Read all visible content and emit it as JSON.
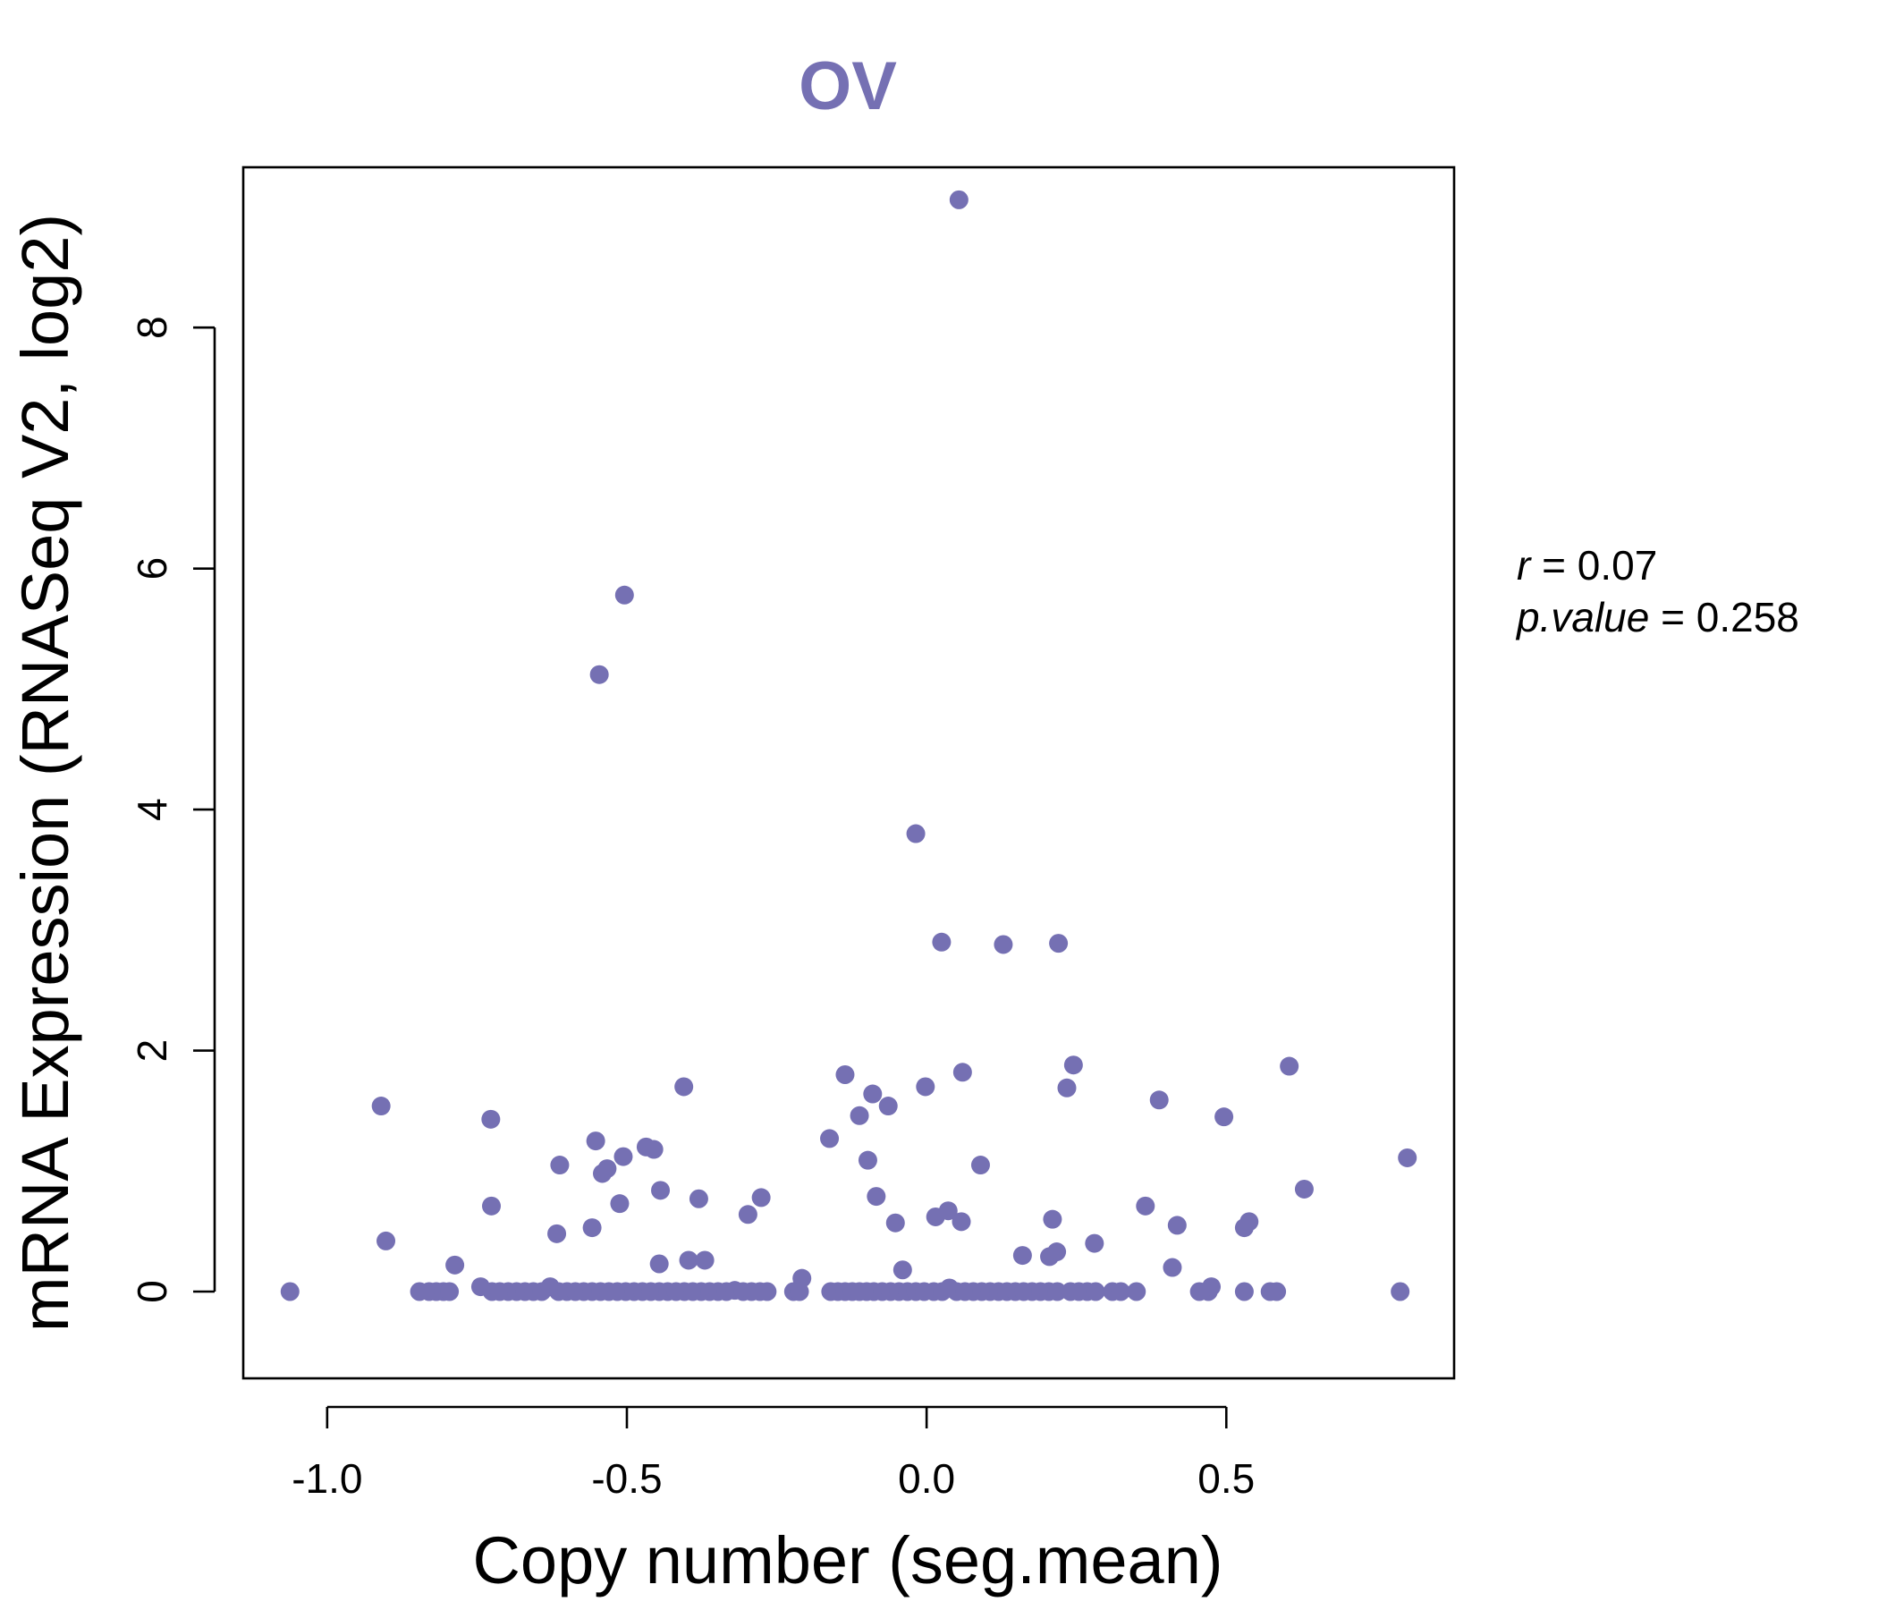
{
  "chart_data": {
    "type": "scatter",
    "title": "OV",
    "title_color": "#7570B3",
    "point_color": "#7570B3",
    "xlabel": "Copy number (seg.mean)",
    "ylabel": "mRNA Expression (RNASeq V2, log2)",
    "xlim": [
      -1.14,
      0.88
    ],
    "ylim": [
      -0.72,
      9.33
    ],
    "x_ticks": [
      -1.0,
      -0.5,
      0.0,
      0.5
    ],
    "x_tick_labels": [
      "-1.0",
      "-0.5",
      "0.0",
      "0.5"
    ],
    "y_ticks": [
      0,
      2,
      4,
      6,
      8
    ],
    "y_tick_labels": [
      "0",
      "2",
      "4",
      "6",
      "8"
    ],
    "grid": false,
    "annotations": {
      "r_label": "r",
      "r_value": "0.07",
      "p_label": "p.value",
      "p_value": "0.258"
    },
    "points": [
      [
        0.054,
        9.06
      ],
      [
        -0.504,
        5.78
      ],
      [
        -0.546,
        5.12
      ],
      [
        -0.018,
        3.8
      ],
      [
        0.025,
        2.9
      ],
      [
        0.128,
        2.88
      ],
      [
        0.22,
        2.89
      ],
      [
        -0.91,
        1.54
      ],
      [
        -0.727,
        1.43
      ],
      [
        -0.405,
        1.7
      ],
      [
        -0.552,
        1.25
      ],
      [
        -0.468,
        1.2
      ],
      [
        -0.455,
        1.18
      ],
      [
        -0.506,
        1.12
      ],
      [
        -0.533,
        1.02
      ],
      [
        -0.541,
        0.98
      ],
      [
        -0.612,
        1.05
      ],
      [
        -0.162,
        1.27
      ],
      [
        -0.136,
        1.8
      ],
      [
        -0.112,
        1.46
      ],
      [
        -0.09,
        1.64
      ],
      [
        -0.064,
        1.54
      ],
      [
        -0.002,
        1.7
      ],
      [
        0.06,
        1.82
      ],
      [
        -0.098,
        1.09
      ],
      [
        0.09,
        1.05
      ],
      [
        0.234,
        1.69
      ],
      [
        0.245,
        1.88
      ],
      [
        0.388,
        1.59
      ],
      [
        0.496,
        1.45
      ],
      [
        0.605,
        1.87
      ],
      [
        0.802,
        1.11
      ],
      [
        -0.902,
        0.42
      ],
      [
        -0.726,
        0.71
      ],
      [
        -0.617,
        0.48
      ],
      [
        -0.558,
        0.53
      ],
      [
        -0.512,
        0.73
      ],
      [
        -0.444,
        0.84
      ],
      [
        -0.38,
        0.77
      ],
      [
        -0.298,
        0.64
      ],
      [
        -0.276,
        0.78
      ],
      [
        -0.084,
        0.79
      ],
      [
        -0.052,
        0.57
      ],
      [
        0.015,
        0.62
      ],
      [
        0.036,
        0.67
      ],
      [
        0.058,
        0.58
      ],
      [
        0.21,
        0.6
      ],
      [
        0.365,
        0.71
      ],
      [
        0.418,
        0.55
      ],
      [
        0.53,
        0.53
      ],
      [
        0.538,
        0.58
      ],
      [
        0.63,
        0.85
      ],
      [
        -0.787,
        0.22
      ],
      [
        -0.446,
        0.23
      ],
      [
        -0.397,
        0.26
      ],
      [
        -0.37,
        0.26
      ],
      [
        -0.208,
        0.11
      ],
      [
        -0.04,
        0.18
      ],
      [
        0.16,
        0.3
      ],
      [
        0.205,
        0.29
      ],
      [
        0.217,
        0.33
      ],
      [
        0.28,
        0.4
      ],
      [
        0.41,
        0.2
      ],
      [
        -1.062,
        0.0
      ],
      [
        -0.846,
        0.0
      ],
      [
        -0.83,
        0.0
      ],
      [
        -0.818,
        0.0
      ],
      [
        -0.806,
        0.0
      ],
      [
        -0.796,
        0.0
      ],
      [
        -0.744,
        0.04
      ],
      [
        -0.725,
        0.0
      ],
      [
        -0.712,
        0.0
      ],
      [
        -0.698,
        0.0
      ],
      [
        -0.684,
        0.0
      ],
      [
        -0.67,
        0.0
      ],
      [
        -0.656,
        0.0
      ],
      [
        -0.642,
        0.0
      ],
      [
        -0.628,
        0.04
      ],
      [
        -0.614,
        0.0
      ],
      [
        -0.6,
        0.0
      ],
      [
        -0.586,
        0.0
      ],
      [
        -0.572,
        0.0
      ],
      [
        -0.558,
        0.0
      ],
      [
        -0.544,
        0.0
      ],
      [
        -0.53,
        0.0
      ],
      [
        -0.516,
        0.0
      ],
      [
        -0.502,
        0.0
      ],
      [
        -0.488,
        0.0
      ],
      [
        -0.474,
        0.0
      ],
      [
        -0.46,
        0.0
      ],
      [
        -0.446,
        0.0
      ],
      [
        -0.432,
        0.0
      ],
      [
        -0.418,
        0.0
      ],
      [
        -0.404,
        0.0
      ],
      [
        -0.39,
        0.0
      ],
      [
        -0.376,
        0.0
      ],
      [
        -0.362,
        0.0
      ],
      [
        -0.348,
        0.0
      ],
      [
        -0.334,
        0.0
      ],
      [
        -0.32,
        0.01
      ],
      [
        -0.306,
        0.0
      ],
      [
        -0.292,
        0.0
      ],
      [
        -0.278,
        0.0
      ],
      [
        -0.266,
        0.0
      ],
      [
        -0.222,
        0.0
      ],
      [
        -0.212,
        0.0
      ],
      [
        -0.16,
        0.0
      ],
      [
        -0.148,
        0.0
      ],
      [
        -0.136,
        0.0
      ],
      [
        -0.124,
        0.0
      ],
      [
        -0.112,
        0.0
      ],
      [
        -0.1,
        0.0
      ],
      [
        -0.088,
        0.0
      ],
      [
        -0.074,
        0.0
      ],
      [
        -0.06,
        0.0
      ],
      [
        -0.046,
        0.0
      ],
      [
        -0.032,
        0.0
      ],
      [
        -0.018,
        0.0
      ],
      [
        -0.004,
        0.0
      ],
      [
        0.012,
        0.0
      ],
      [
        0.026,
        0.0
      ],
      [
        0.038,
        0.03
      ],
      [
        0.05,
        0.0
      ],
      [
        0.064,
        0.0
      ],
      [
        0.078,
        0.0
      ],
      [
        0.092,
        0.0
      ],
      [
        0.106,
        0.0
      ],
      [
        0.12,
        0.0
      ],
      [
        0.134,
        0.0
      ],
      [
        0.148,
        0.0
      ],
      [
        0.162,
        0.0
      ],
      [
        0.176,
        0.0
      ],
      [
        0.19,
        0.0
      ],
      [
        0.204,
        0.0
      ],
      [
        0.218,
        0.0
      ],
      [
        0.24,
        0.0
      ],
      [
        0.254,
        0.0
      ],
      [
        0.268,
        0.0
      ],
      [
        0.282,
        0.0
      ],
      [
        0.31,
        0.0
      ],
      [
        0.324,
        0.0
      ],
      [
        0.35,
        0.0
      ],
      [
        0.455,
        0.0
      ],
      [
        0.47,
        0.0
      ],
      [
        0.475,
        0.04
      ],
      [
        0.53,
        0.0
      ],
      [
        0.573,
        0.0
      ],
      [
        0.584,
        0.0
      ],
      [
        0.79,
        0.0
      ]
    ]
  }
}
